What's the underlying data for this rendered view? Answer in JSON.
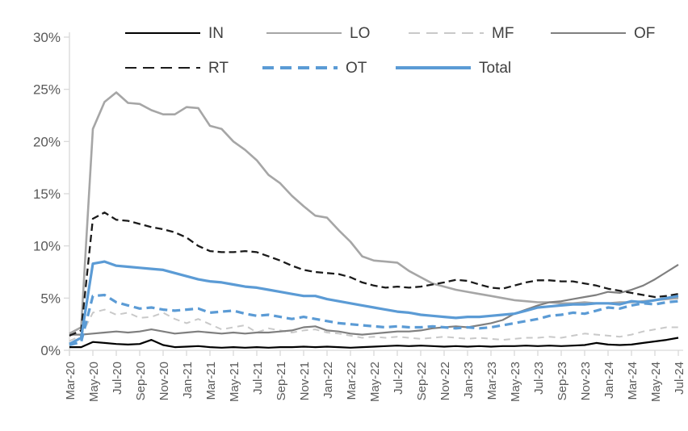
{
  "chart_data": {
    "type": "line",
    "title": "",
    "xlabel": "",
    "ylabel": "",
    "ylim": [
      0,
      30
    ],
    "y_ticks": [
      "0%",
      "5%",
      "10%",
      "15%",
      "20%",
      "25%",
      "30%"
    ],
    "x_tick_step": 2,
    "grid": false,
    "legend_position": "top",
    "x_labels": [
      "Mar-20",
      "Apr-20",
      "May-20",
      "Jun-20",
      "Jul-20",
      "Aug-20",
      "Sep-20",
      "Oct-20",
      "Nov-20",
      "Dec-20",
      "Jan-21",
      "Feb-21",
      "Mar-21",
      "Apr-21",
      "May-21",
      "Jun-21",
      "Jul-21",
      "Aug-21",
      "Sep-21",
      "Oct-21",
      "Nov-21",
      "Dec-21",
      "Jan-22",
      "Feb-22",
      "Mar-22",
      "Apr-22",
      "May-22",
      "Jun-22",
      "Jul-22",
      "Aug-22",
      "Sep-22",
      "Oct-22",
      "Nov-22",
      "Dec-22",
      "Jan-23",
      "Feb-23",
      "Mar-23",
      "Apr-23",
      "May-23",
      "Jun-23",
      "Jul-23",
      "Aug-23",
      "Sep-23",
      "Oct-23",
      "Nov-23",
      "Dec-23",
      "Jan-24",
      "Feb-24",
      "Mar-24",
      "Apr-24",
      "May-24",
      "Jun-24",
      "Jul-24"
    ],
    "series": [
      {
        "name": "IN",
        "color": "#000000",
        "style": "solid",
        "width": 2.2,
        "values": [
          0.3,
          0.3,
          0.8,
          0.7,
          0.6,
          0.55,
          0.6,
          1.0,
          0.5,
          0.3,
          0.35,
          0.4,
          0.3,
          0.25,
          0.3,
          0.25,
          0.3,
          0.25,
          0.3,
          0.3,
          0.35,
          0.3,
          0.35,
          0.3,
          0.25,
          0.3,
          0.35,
          0.4,
          0.45,
          0.4,
          0.45,
          0.4,
          0.35,
          0.4,
          0.35,
          0.4,
          0.35,
          0.4,
          0.4,
          0.45,
          0.4,
          0.45,
          0.4,
          0.45,
          0.5,
          0.7,
          0.55,
          0.5,
          0.55,
          0.7,
          0.85,
          1.0,
          1.2
        ]
      },
      {
        "name": "LO",
        "color": "#a6a6a6",
        "style": "solid",
        "width": 2.6,
        "values": [
          1.6,
          2.2,
          21.2,
          23.8,
          24.7,
          23.7,
          23.6,
          23.0,
          22.6,
          22.6,
          23.3,
          23.2,
          21.5,
          21.2,
          20.0,
          19.2,
          18.2,
          16.8,
          16.0,
          14.8,
          13.8,
          12.9,
          12.7,
          11.5,
          10.4,
          9.0,
          8.6,
          8.5,
          8.4,
          7.6,
          7.0,
          6.4,
          6.1,
          5.8,
          5.6,
          5.4,
          5.2,
          5.0,
          4.8,
          4.7,
          4.6,
          4.6,
          4.5,
          4.5,
          4.6,
          4.5,
          4.5,
          4.6,
          4.6,
          4.7,
          4.8,
          4.9,
          5.0
        ]
      },
      {
        "name": "MF",
        "color": "#c9c9c9",
        "style": "dashed",
        "width": 2.0,
        "values": [
          0.9,
          1.4,
          3.6,
          3.9,
          3.4,
          3.6,
          3.1,
          3.2,
          3.6,
          3.0,
          2.6,
          3.0,
          2.5,
          2.0,
          2.2,
          2.4,
          1.7,
          2.1,
          1.9,
          1.7,
          1.9,
          2.0,
          1.7,
          1.6,
          1.4,
          1.2,
          1.3,
          1.2,
          1.3,
          1.2,
          1.1,
          1.2,
          1.3,
          1.2,
          1.1,
          1.2,
          1.1,
          1.0,
          1.1,
          1.2,
          1.2,
          1.3,
          1.2,
          1.4,
          1.6,
          1.5,
          1.4,
          1.3,
          1.5,
          1.8,
          2.0,
          2.2,
          2.2
        ]
      },
      {
        "name": "OF",
        "color": "#7f7f7f",
        "style": "solid",
        "width": 2.2,
        "values": [
          1.5,
          1.5,
          1.6,
          1.7,
          1.8,
          1.7,
          1.8,
          2.0,
          1.8,
          1.6,
          1.7,
          1.8,
          1.7,
          1.6,
          1.7,
          1.6,
          1.7,
          1.7,
          1.8,
          1.9,
          2.2,
          2.3,
          1.9,
          1.8,
          1.6,
          1.5,
          1.6,
          1.7,
          1.8,
          1.8,
          1.9,
          2.1,
          2.2,
          2.3,
          2.2,
          2.4,
          2.6,
          2.9,
          3.5,
          3.9,
          4.3,
          4.6,
          4.7,
          4.9,
          5.1,
          5.3,
          5.6,
          5.5,
          5.8,
          6.2,
          6.8,
          7.5,
          8.2
        ]
      },
      {
        "name": "RT",
        "color": "#1a1a1a",
        "style": "dashed",
        "width": 2.3,
        "values": [
          1.4,
          1.9,
          12.6,
          13.2,
          12.5,
          12.4,
          12.1,
          11.8,
          11.6,
          11.3,
          10.8,
          10.0,
          9.5,
          9.4,
          9.4,
          9.5,
          9.4,
          9.0,
          8.6,
          8.1,
          7.7,
          7.5,
          7.4,
          7.3,
          7.0,
          6.5,
          6.2,
          6.0,
          6.1,
          6.0,
          6.1,
          6.3,
          6.5,
          6.75,
          6.65,
          6.3,
          6.0,
          5.9,
          6.2,
          6.5,
          6.7,
          6.7,
          6.6,
          6.6,
          6.4,
          6.2,
          5.9,
          5.7,
          5.5,
          5.3,
          5.1,
          5.2,
          5.4
        ]
      },
      {
        "name": "OT",
        "color": "#5b9bd5",
        "style": "dashed",
        "width": 3.2,
        "values": [
          0.5,
          0.8,
          5.2,
          5.3,
          4.6,
          4.3,
          4.0,
          4.1,
          3.9,
          3.8,
          3.9,
          4.0,
          3.6,
          3.7,
          3.8,
          3.5,
          3.3,
          3.4,
          3.2,
          3.0,
          3.2,
          3.0,
          2.8,
          2.6,
          2.5,
          2.4,
          2.3,
          2.2,
          2.3,
          2.2,
          2.2,
          2.3,
          2.2,
          2.1,
          2.2,
          2.1,
          2.2,
          2.4,
          2.6,
          2.8,
          3.0,
          3.3,
          3.4,
          3.6,
          3.5,
          3.8,
          4.1,
          4.0,
          4.3,
          4.5,
          4.4,
          4.6,
          4.7
        ]
      },
      {
        "name": "Total",
        "color": "#5b9bd5",
        "style": "solid",
        "width": 3.2,
        "values": [
          0.6,
          1.2,
          8.3,
          8.5,
          8.1,
          8.0,
          7.9,
          7.8,
          7.7,
          7.4,
          7.1,
          6.8,
          6.6,
          6.5,
          6.3,
          6.1,
          6.0,
          5.8,
          5.6,
          5.4,
          5.2,
          5.2,
          4.9,
          4.7,
          4.5,
          4.3,
          4.1,
          3.9,
          3.7,
          3.6,
          3.4,
          3.3,
          3.2,
          3.1,
          3.2,
          3.2,
          3.3,
          3.4,
          3.5,
          3.8,
          4.1,
          4.2,
          4.3,
          4.4,
          4.4,
          4.5,
          4.5,
          4.4,
          4.7,
          4.6,
          4.8,
          5.0,
          5.2
        ]
      }
    ]
  },
  "legend": {
    "rows": [
      [
        "IN",
        "LO",
        "MF",
        "OF"
      ],
      [
        "RT",
        "OT",
        "Total"
      ]
    ]
  },
  "colors": {
    "axis": "#d9d9d9",
    "tick_label": "#595959",
    "legend_label": "#404040",
    "accent_blue": "#5b9bd5"
  }
}
